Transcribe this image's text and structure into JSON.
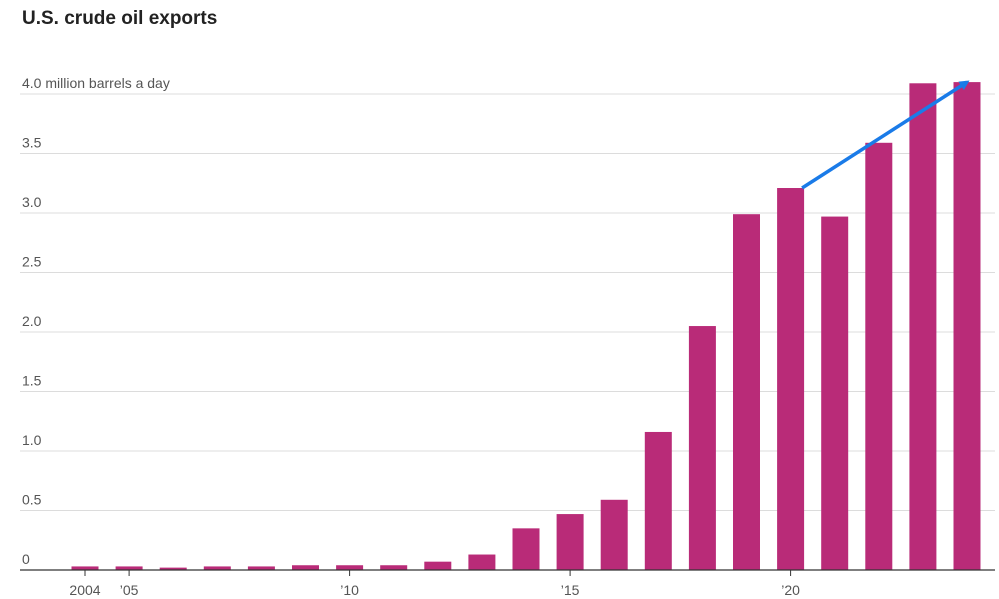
{
  "chart_data": {
    "type": "bar",
    "title": "U.S. crude oil exports",
    "unit_label": "4.0 million barrels a day",
    "categories": [
      "2004",
      "2005",
      "2006",
      "2007",
      "2008",
      "2009",
      "2010",
      "2011",
      "2012",
      "2013",
      "2014",
      "2015",
      "2016",
      "2017",
      "2018",
      "2019",
      "2020",
      "2021",
      "2022",
      "2023",
      "2024"
    ],
    "values": [
      0.03,
      0.03,
      0.02,
      0.03,
      0.03,
      0.04,
      0.04,
      0.04,
      0.07,
      0.13,
      0.35,
      0.47,
      0.59,
      1.16,
      2.05,
      2.99,
      3.21,
      2.97,
      3.59,
      4.09,
      4.1
    ],
    "x_tick_labels": [
      {
        "category": "2004",
        "label": "2004"
      },
      {
        "category": "2005",
        "label": "’05"
      },
      {
        "category": "2010",
        "label": "’10"
      },
      {
        "category": "2015",
        "label": "’15"
      },
      {
        "category": "2020",
        "label": "’20"
      }
    ],
    "y_ticks": [
      {
        "value": 0,
        "label": "0"
      },
      {
        "value": 0.5,
        "label": "0.5"
      },
      {
        "value": 1.0,
        "label": "1.0"
      },
      {
        "value": 1.5,
        "label": "1.5"
      },
      {
        "value": 2.0,
        "label": "2.0"
      },
      {
        "value": 2.5,
        "label": "2.5"
      },
      {
        "value": 3.0,
        "label": "3.0"
      },
      {
        "value": 3.5,
        "label": "3.5"
      }
    ],
    "ylim": [
      0,
      4.0
    ],
    "grid": true,
    "bar_color": "#b92b78",
    "arrow_color": "#1a7be8",
    "annotation_arrow": {
      "from_category": "2020",
      "from_value": 3.21,
      "to_category": "2024",
      "to_value": 4.1
    }
  }
}
